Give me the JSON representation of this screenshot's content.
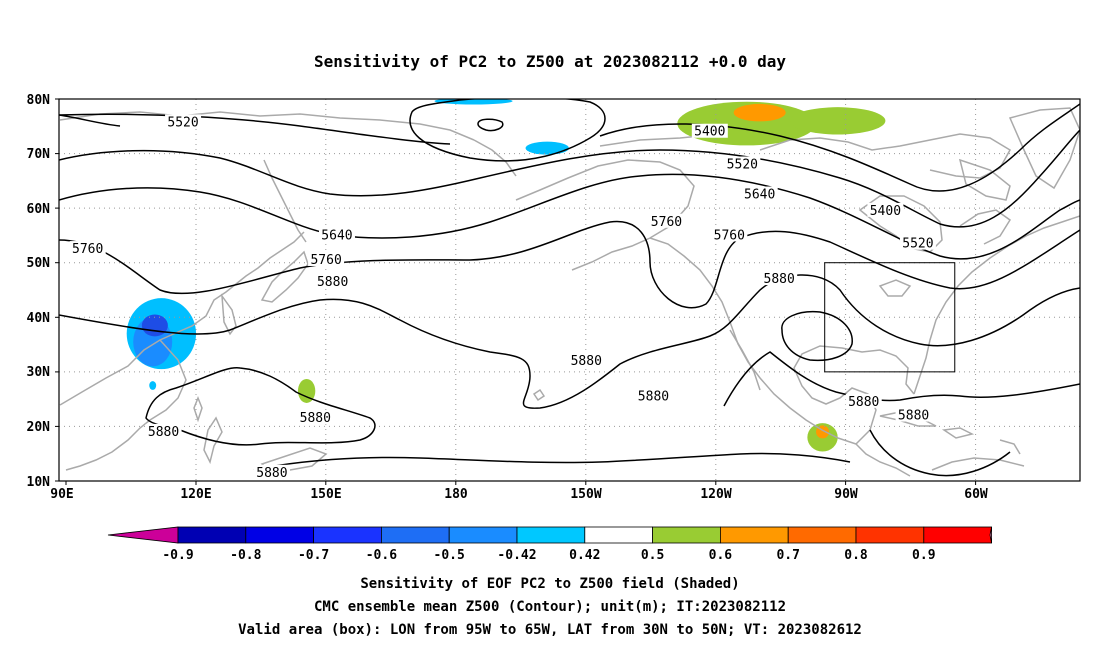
{
  "title": "Sensitivity of PC2 to Z500 at 2023082112 +0.0 day",
  "lat_labels": [
    "80N",
    "70N",
    "60N",
    "50N",
    "40N",
    "30N",
    "20N",
    "10N"
  ],
  "lon_labels": [
    "90E",
    "120E",
    "150E",
    "180",
    "150W",
    "120W",
    "90W",
    "60W"
  ],
  "contour_levels": [
    "5400",
    "5520",
    "5640",
    "5760",
    "5880"
  ],
  "contour_labels": [
    {
      "text": "5520",
      "lon": 117,
      "lat": 75.7
    },
    {
      "text": "5400",
      "lon": 238.5,
      "lat": 74
    },
    {
      "text": "5520",
      "lon": 246,
      "lat": 68
    },
    {
      "text": "5640",
      "lon": 250,
      "lat": 62.5
    },
    {
      "text": "5760",
      "lon": 95,
      "lat": 52.5
    },
    {
      "text": "5640",
      "lon": 152.5,
      "lat": 55
    },
    {
      "text": "5760",
      "lon": 150,
      "lat": 50.5
    },
    {
      "text": "5880",
      "lon": 151.5,
      "lat": 46.5
    },
    {
      "text": "5760",
      "lon": 228.5,
      "lat": 57.5
    },
    {
      "text": "5760",
      "lon": 243,
      "lat": 55
    },
    {
      "text": "5880",
      "lon": 254.5,
      "lat": 47
    },
    {
      "text": "5880",
      "lon": 210,
      "lat": 32
    },
    {
      "text": "5880",
      "lon": 225.5,
      "lat": 25.5
    },
    {
      "text": "5880",
      "lon": 112.5,
      "lat": 19
    },
    {
      "text": "5880",
      "lon": 147.5,
      "lat": 21.5
    },
    {
      "text": "5880",
      "lon": 137.5,
      "lat": 11.5
    },
    {
      "text": "5400",
      "lon": 279,
      "lat": 59.5
    },
    {
      "text": "5520",
      "lon": 286.5,
      "lat": 53.5
    },
    {
      "text": "5880",
      "lon": 274,
      "lat": 24.5
    },
    {
      "text": "5880",
      "lon": 285.5,
      "lat": 22
    }
  ],
  "valid_box": {
    "lon_min": 265,
    "lon_max": 295,
    "lat_min": 30,
    "lat_max": 50
  },
  "shaded_areas": [
    {
      "sign": "negative",
      "level": "-0.42 to -0.5",
      "color": "#00bfff",
      "lon": 112,
      "lat": 37,
      "rlon": 8,
      "rlat": 6.5
    },
    {
      "sign": "negative",
      "level": "-0.5 to -0.6",
      "color": "#1a8cff",
      "lon": 110,
      "lat": 35.5,
      "rlon": 4.5,
      "rlat": 4.5
    },
    {
      "sign": "negative",
      "level": "-0.6 to -0.7",
      "color": "#1e4de6",
      "lon": 110.5,
      "lat": 38.5,
      "rlon": 3,
      "rlat": 2
    },
    {
      "sign": "negative",
      "level": "-0.42 to -0.5",
      "color": "#00bfff",
      "lon": 110,
      "lat": 27.5,
      "rlon": 0.8,
      "rlat": 0.8
    },
    {
      "sign": "negative",
      "level": "-0.42 to -0.5",
      "color": "#00bfff",
      "lon": 201,
      "lat": 71,
      "rlon": 5,
      "rlat": 1.2
    },
    {
      "sign": "negative",
      "level": "-0.42 to -0.5",
      "color": "#00bfff",
      "lon": 184,
      "lat": 79.6,
      "rlon": 9,
      "rlat": 0.6
    },
    {
      "sign": "positive",
      "level": "0.42 to 0.5",
      "color": "#99cc33",
      "lon": 145.5,
      "lat": 26.5,
      "rlon": 2,
      "rlat": 2.2
    },
    {
      "sign": "positive",
      "level": "0.42 to 0.5",
      "color": "#99cc33",
      "lon": 247,
      "lat": 75.5,
      "rlon": 16,
      "rlat": 4
    },
    {
      "sign": "positive",
      "level": "0.42 to 0.5",
      "color": "#99cc33",
      "lon": 268,
      "lat": 76,
      "rlon": 11,
      "rlat": 2.5
    },
    {
      "sign": "positive",
      "level": "0.5 to 0.6",
      "color": "#ff9900",
      "lon": 250,
      "lat": 77.5,
      "rlon": 6,
      "rlat": 1.6
    },
    {
      "sign": "positive",
      "level": "0.42 to 0.5",
      "color": "#99cc33",
      "lon": 264.5,
      "lat": 18,
      "rlon": 3.5,
      "rlat": 2.6
    },
    {
      "sign": "positive",
      "level": "0.5 to 0.6",
      "color": "#ff9900",
      "lon": 264.5,
      "lat": 19,
      "rlon": 1.5,
      "rlat": 1.2
    }
  ],
  "colorbar": {
    "colors": [
      "#cc0099",
      "#0000b3",
      "#0000e6",
      "#1a33ff",
      "#1e6ef5",
      "#1a8cff",
      "#00c8ff",
      "#ffffff",
      "#99cc33",
      "#ff9900",
      "#ff6a00",
      "#ff3300",
      "#ff0000",
      "#ff99cc"
    ],
    "labels": [
      "-0.9",
      "-0.8",
      "-0.7",
      "-0.6",
      "-0.5",
      "-0.42",
      "0.42",
      "0.5",
      "0.6",
      "0.7",
      "0.8",
      "0.9"
    ]
  },
  "caption": {
    "line1": "Sensitivity of EOF PC2 to Z500 field (Shaded)",
    "line2": "CMC ensemble mean Z500 (Contour); unit(m); IT:2023082112",
    "line3": "Valid area (box): LON from 95W to 65W, LAT from 30N to 50N; VT: 2023082612"
  }
}
